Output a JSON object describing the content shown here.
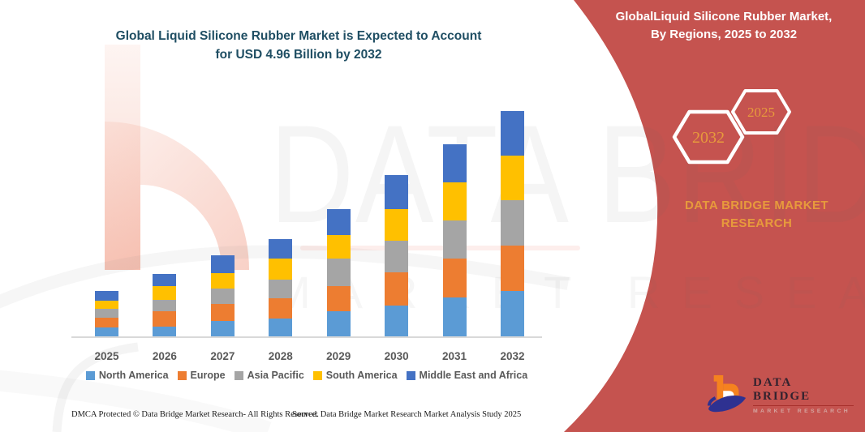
{
  "title": {
    "line1": "Global Liquid Silicone Rubber Market is Expected to Account",
    "line2": "for USD 4.96 Billion by 2032"
  },
  "side_panel": {
    "heading_line1": "GlobalLiquid Silicone Rubber Market,",
    "heading_line2": "By Regions, 2025 to 2032",
    "hex_back_label": "2032",
    "hex_front_label": "2025",
    "brand_line1": "DATA BRIDGE MARKET",
    "brand_line2": "RESEARCH",
    "background_color": "#C5534F",
    "accent_text_color": "#E79A3C"
  },
  "watermark": {
    "line1": "DATA BRIDGE",
    "line2": "MARKET RESEARCH"
  },
  "logo": {
    "name_line1": "DATA BRIDGE",
    "name_line2": "MARKET RESEARCH"
  },
  "footer": {
    "left": "DMCA Protected © Data Bridge Market Research- All Rights Reserved.",
    "right": "Source: Data Bridge Market Research Market Analysis Study 2025"
  },
  "chart_data": {
    "type": "bar",
    "stacked": true,
    "title": "Global Liquid Silicone Rubber Market is Expected to Account for USD 4.96 Billion by 2032",
    "unit": "USD Billion",
    "categories": [
      "2025",
      "2026",
      "2027",
      "2028",
      "2029",
      "2030",
      "2031",
      "2032"
    ],
    "series": [
      {
        "name": "North America",
        "color": "#5B9BD5",
        "values": [
          0.2,
          0.22,
          0.34,
          0.39,
          0.56,
          0.68,
          0.85,
          1.0
        ]
      },
      {
        "name": "Europe",
        "color": "#ED7D31",
        "values": [
          0.21,
          0.33,
          0.38,
          0.45,
          0.55,
          0.73,
          0.86,
          1.0
        ]
      },
      {
        "name": "Asia Pacific",
        "color": "#A5A5A5",
        "values": [
          0.2,
          0.25,
          0.34,
          0.42,
          0.6,
          0.7,
          0.84,
          1.0
        ]
      },
      {
        "name": "South America",
        "color": "#FFC000",
        "values": [
          0.18,
          0.31,
          0.34,
          0.46,
          0.52,
          0.69,
          0.85,
          0.99
        ]
      },
      {
        "name": "Middle East and Africa",
        "color": "#4472C4",
        "values": [
          0.21,
          0.27,
          0.39,
          0.42,
          0.58,
          0.75,
          0.84,
          0.97
        ]
      }
    ],
    "totals": [
      1.0,
      1.38,
      1.79,
      2.14,
      2.81,
      3.55,
      4.24,
      4.96
    ],
    "xlabel": "",
    "ylabel": "",
    "ylim": [
      0,
      5.2
    ],
    "grid": false,
    "legend_position": "bottom"
  }
}
